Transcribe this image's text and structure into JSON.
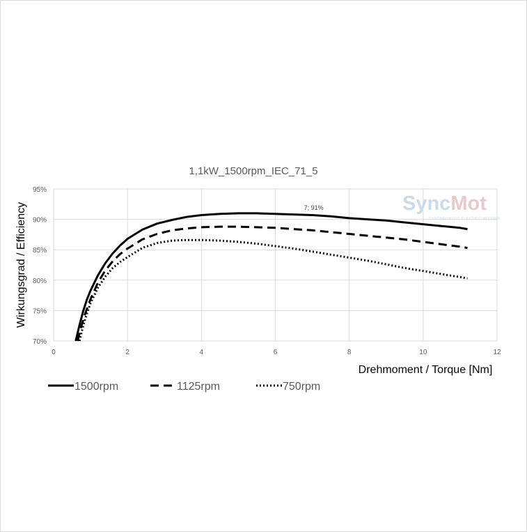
{
  "chart_data": {
    "type": "line",
    "title": "1,1kW_1500rpm_IEC_71_5",
    "xlabel": "Drehmoment / Torque [Nm]",
    "ylabel": "Wirkungsgrad / Efficiency",
    "xlim": [
      0,
      12
    ],
    "ylim": [
      70,
      95
    ],
    "x_ticks": [
      0,
      2,
      4,
      6,
      8,
      10,
      12
    ],
    "y_ticks": [
      70,
      75,
      80,
      85,
      90,
      95
    ],
    "y_tick_labels": [
      "70%",
      "75%",
      "80%",
      "85%",
      "90%",
      "95%"
    ],
    "grid": true,
    "legend_position": "bottom",
    "annotation": {
      "x": 7,
      "y": 91,
      "text": "7; 91%"
    },
    "watermark": {
      "text_main": "Sync",
      "text_accent": "Mot",
      "tagline": "SYNCHRONOUS ELECTRIC MOTORS"
    },
    "series": [
      {
        "name": "1500rpm",
        "style": "solid",
        "color": "#000000",
        "x": [
          0.6,
          0.7,
          0.8,
          0.9,
          1.0,
          1.2,
          1.4,
          1.6,
          1.8,
          2.0,
          2.4,
          2.8,
          3.2,
          3.6,
          4.0,
          4.5,
          5.0,
          5.5,
          6.0,
          6.5,
          7.0,
          7.5,
          8.0,
          8.5,
          9.0,
          9.5,
          10.0,
          10.5,
          11.0,
          11.2
        ],
        "values": [
          70.0,
          72.6,
          74.9,
          76.8,
          78.3,
          80.8,
          82.8,
          84.4,
          85.7,
          86.8,
          88.3,
          89.3,
          89.9,
          90.4,
          90.7,
          90.9,
          91.0,
          91.0,
          90.9,
          90.8,
          90.7,
          90.5,
          90.2,
          90.0,
          89.8,
          89.5,
          89.2,
          88.9,
          88.6,
          88.4
        ]
      },
      {
        "name": "1125rpm",
        "style": "dashed",
        "color": "#000000",
        "x": [
          0.65,
          0.75,
          0.85,
          1.0,
          1.2,
          1.4,
          1.6,
          1.8,
          2.0,
          2.4,
          2.8,
          3.2,
          3.6,
          4.0,
          4.5,
          5.0,
          5.5,
          6.0,
          6.5,
          7.0,
          7.5,
          8.0,
          8.5,
          9.0,
          9.5,
          10.0,
          10.5,
          11.0,
          11.2
        ],
        "values": [
          70.0,
          72.4,
          74.4,
          76.9,
          79.6,
          81.6,
          83.1,
          84.3,
          85.2,
          86.7,
          87.6,
          88.2,
          88.5,
          88.7,
          88.8,
          88.8,
          88.7,
          88.6,
          88.4,
          88.2,
          87.9,
          87.6,
          87.3,
          87.0,
          86.7,
          86.3,
          85.9,
          85.5,
          85.3
        ]
      },
      {
        "name": "750rpm",
        "style": "dotted",
        "color": "#000000",
        "x": [
          0.7,
          0.8,
          0.9,
          1.0,
          1.2,
          1.4,
          1.6,
          1.8,
          2.0,
          2.4,
          2.8,
          3.2,
          3.6,
          4.0,
          4.5,
          5.0,
          5.5,
          6.0,
          6.5,
          7.0,
          7.5,
          8.0,
          8.5,
          9.0,
          9.5,
          10.0,
          10.5,
          11.0,
          11.2
        ],
        "values": [
          70.0,
          72.5,
          74.5,
          76.2,
          78.8,
          80.6,
          82.0,
          83.0,
          83.8,
          85.3,
          86.1,
          86.5,
          86.6,
          86.6,
          86.5,
          86.3,
          86.0,
          85.6,
          85.2,
          84.7,
          84.2,
          83.7,
          83.2,
          82.6,
          82.0,
          81.5,
          81.0,
          80.5,
          80.3
        ]
      }
    ]
  }
}
